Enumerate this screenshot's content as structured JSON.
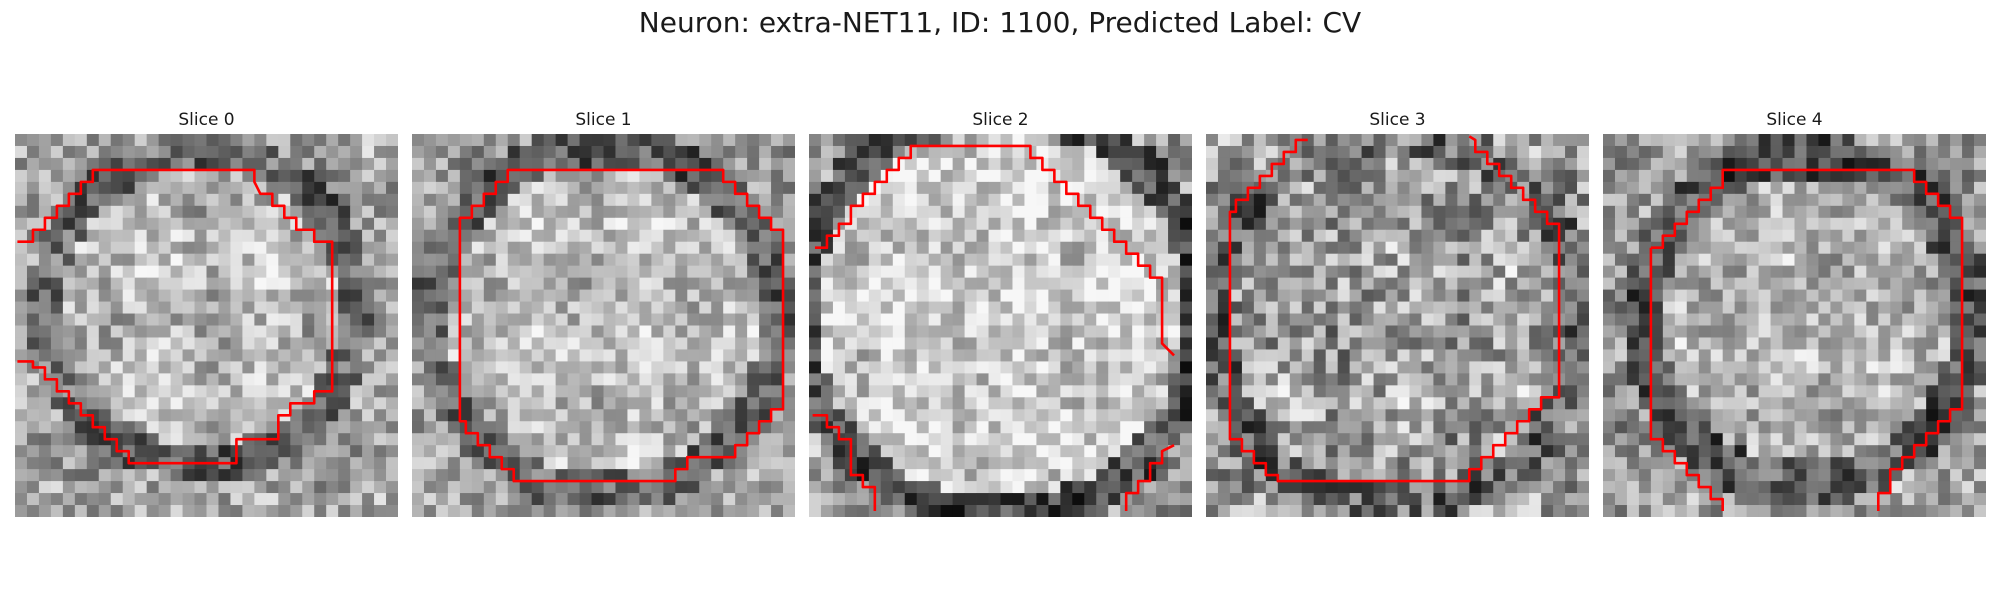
{
  "figure": {
    "title": "Neuron: extra-NET11, ID: 1100, Predicted Label: CV"
  },
  "panels": [
    {
      "title": "Slice 0"
    },
    {
      "title": "Slice 1"
    },
    {
      "title": "Slice 2"
    },
    {
      "title": "Slice 3"
    },
    {
      "title": "Slice 4"
    }
  ],
  "colors": {
    "contour": "#ff0000"
  }
}
